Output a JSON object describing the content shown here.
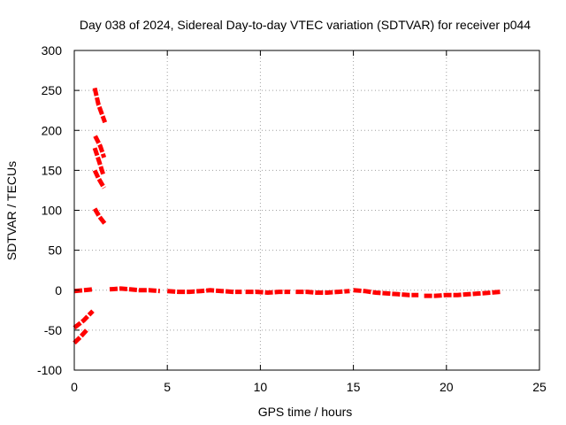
{
  "chart_data": {
    "type": "line",
    "title": "Day 038 of 2024, Sidereal Day-to-day VTEC variation (SDTVAR) for receiver p044",
    "xlabel": "GPS time / hours",
    "ylabel": "SDTVAR / TECUs",
    "xlim": [
      0,
      25
    ],
    "ylim": [
      -100,
      300
    ],
    "xticks": [
      0,
      5,
      10,
      15,
      20,
      25
    ],
    "yticks": [
      -100,
      -50,
      0,
      50,
      100,
      150,
      200,
      250,
      300
    ],
    "grid": true,
    "series_color": "#ff0000",
    "series": [
      {
        "name": "SDTVAR",
        "segments": [
          [
            [
              0.0,
              -1
            ],
            [
              0.5,
              0
            ],
            [
              1.0,
              1
            ]
          ],
          [
            [
              0.0,
              -47
            ],
            [
              0.5,
              -38
            ],
            [
              1.0,
              -26
            ]
          ],
          [
            [
              0.0,
              -66
            ],
            [
              0.35,
              -58
            ],
            [
              0.7,
              -49
            ]
          ],
          [
            [
              1.1,
              253
            ],
            [
              1.3,
              232
            ],
            [
              1.65,
              210
            ]
          ],
          [
            [
              1.12,
              193
            ],
            [
              1.4,
              180
            ],
            [
              1.6,
              166
            ]
          ],
          [
            [
              1.1,
              178
            ],
            [
              1.35,
              160
            ],
            [
              1.55,
              145
            ]
          ],
          [
            [
              1.1,
              150
            ],
            [
              1.3,
              140
            ],
            [
              1.6,
              128
            ]
          ],
          [
            [
              1.1,
              102
            ],
            [
              1.35,
              92
            ],
            [
              1.65,
              83
            ]
          ],
          [
            [
              1.9,
              1
            ],
            [
              2.5,
              2
            ],
            [
              3.0,
              1
            ],
            [
              3.5,
              0
            ],
            [
              4.0,
              0
            ],
            [
              4.6,
              -1
            ]
          ],
          [
            [
              5.0,
              -1
            ],
            [
              5.6,
              -2
            ],
            [
              6.2,
              -2
            ],
            [
              6.8,
              -1
            ],
            [
              7.3,
              0
            ],
            [
              7.9,
              -1
            ],
            [
              8.5,
              -2
            ],
            [
              9.0,
              -2
            ]
          ],
          [
            [
              9.2,
              -2
            ],
            [
              9.8,
              -2
            ],
            [
              10.4,
              -3
            ],
            [
              11.0,
              -2
            ],
            [
              11.6,
              -2
            ]
          ],
          [
            [
              11.9,
              -2
            ],
            [
              12.5,
              -2
            ],
            [
              13.0,
              -3
            ],
            [
              13.6,
              -3
            ],
            [
              14.2,
              -2
            ],
            [
              14.8,
              -1
            ]
          ],
          [
            [
              15.0,
              0
            ],
            [
              15.6,
              -1
            ],
            [
              16.2,
              -3
            ],
            [
              16.8,
              -4
            ],
            [
              17.4,
              -5
            ],
            [
              18.0,
              -6
            ],
            [
              18.5,
              -6
            ]
          ],
          [
            [
              18.8,
              -7
            ],
            [
              19.4,
              -7
            ],
            [
              20.0,
              -6
            ],
            [
              20.6,
              -6
            ],
            [
              21.2,
              -5
            ],
            [
              21.8,
              -4
            ],
            [
              22.4,
              -3
            ],
            [
              22.9,
              -2
            ]
          ]
        ]
      }
    ]
  }
}
